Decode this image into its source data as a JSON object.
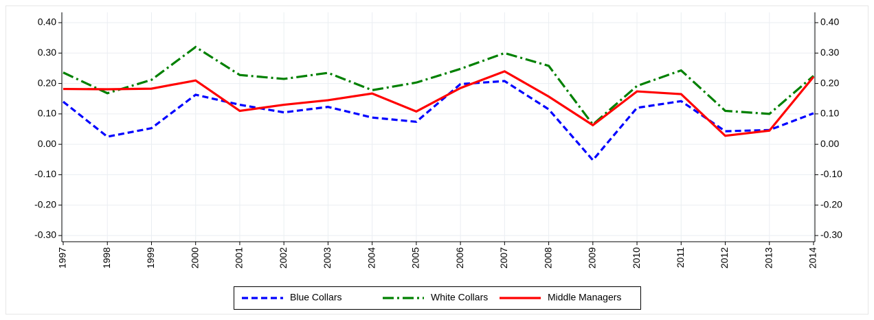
{
  "chart_data": {
    "type": "line",
    "x": [
      1997,
      1998,
      1999,
      2000,
      2001,
      2002,
      2003,
      2004,
      2005,
      2006,
      2007,
      2008,
      2009,
      2010,
      2011,
      2012,
      2013,
      2014
    ],
    "xlim": [
      1997,
      2014
    ],
    "xticks": [
      1997,
      1998,
      1999,
      2000,
      2001,
      2002,
      2003,
      2004,
      2005,
      2006,
      2007,
      2008,
      2009,
      2010,
      2011,
      2012,
      2013,
      2014
    ],
    "ylim": [
      -0.3,
      0.4
    ],
    "yticks": [
      {
        "value": 0.4,
        "label": "0.40"
      },
      {
        "value": 0.3,
        "label": "0.30"
      },
      {
        "value": 0.2,
        "label": "0.20"
      },
      {
        "value": 0.1,
        "label": "0.10"
      },
      {
        "value": 0,
        "label": "0.00"
      },
      {
        "value": -0.1,
        "label": "-0.10"
      },
      {
        "value": -0.2,
        "label": "-0.20"
      },
      {
        "value": -0.3,
        "label": "-0.30"
      }
    ],
    "grid": true,
    "legend": "bottom",
    "series": [
      {
        "name": "Blue Collars",
        "color": "#0000ff",
        "dash": "dash",
        "values": [
          0.14,
          0.025,
          0.053,
          0.163,
          0.13,
          0.105,
          0.123,
          0.088,
          0.074,
          0.198,
          0.208,
          0.115,
          -0.052,
          0.12,
          0.142,
          0.043,
          0.047,
          0.102
        ]
      },
      {
        "name": "White Collars",
        "color": "#008000",
        "dash": "dashdot",
        "values": [
          0.236,
          0.168,
          0.212,
          0.32,
          0.228,
          0.215,
          0.235,
          0.178,
          0.203,
          0.248,
          0.3,
          0.258,
          0.065,
          0.192,
          0.243,
          0.11,
          0.1,
          0.225
        ]
      },
      {
        "name": "Middle Managers",
        "color": "#ff0000",
        "dash": "solid",
        "values": [
          0.182,
          0.181,
          0.183,
          0.21,
          0.11,
          0.13,
          0.145,
          0.167,
          0.108,
          0.185,
          0.24,
          0.157,
          0.063,
          0.174,
          0.165,
          0.028,
          0.045,
          0.222
        ]
      }
    ]
  }
}
